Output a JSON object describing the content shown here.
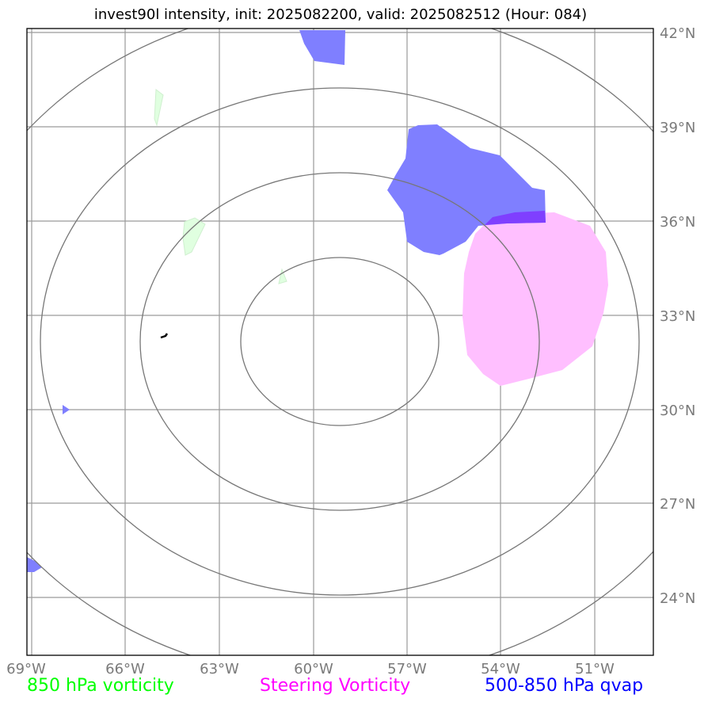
{
  "title": "invest90l intensity, init: 2025082200, valid: 2025082512 (Hour: 084)",
  "map": {
    "lon_labels": [
      "69°W",
      "66°W",
      "63°W",
      "60°W",
      "57°W",
      "54°W",
      "51°W"
    ],
    "lat_labels": [
      "42°N",
      "39°N",
      "36°N",
      "33°N",
      "30°N",
      "27°N",
      "24°N"
    ],
    "grid_color": "#9a9a9a",
    "ring_color": "#777777"
  },
  "legend": {
    "vorticity_850": {
      "label": "850 hPa vorticity",
      "color": "#00ff00"
    },
    "steering": {
      "label": "Steering Vorticity",
      "color": "#ff00ff"
    },
    "qvap": {
      "label": "500-850 hPa qvap",
      "color": "#0000ff"
    }
  },
  "fields": {
    "qvap_color": "#7f7fff",
    "steering_color": "#ffbfff",
    "overlap_color": "#7f3fff",
    "vorticity_color": "#e0ffe0"
  }
}
